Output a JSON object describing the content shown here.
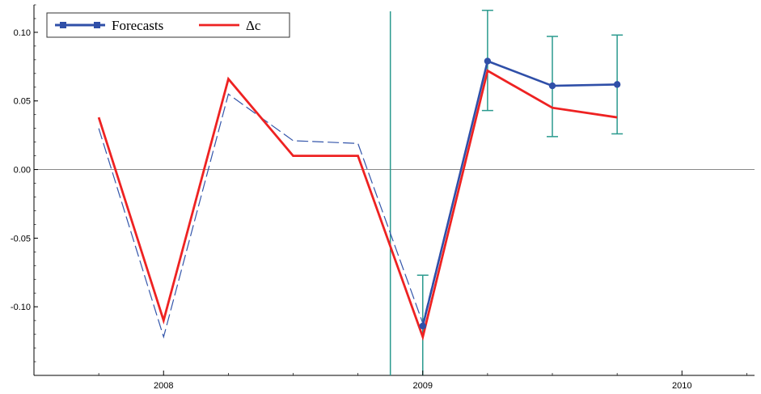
{
  "chart_data": {
    "type": "line",
    "xlim": [
      2007.5,
      2010.28
    ],
    "ylim": [
      -0.15,
      0.12
    ],
    "x_ticks": [
      {
        "value": 2008,
        "label": "2008"
      },
      {
        "value": 2009,
        "label": "2009"
      },
      {
        "value": 2010,
        "label": "2010"
      }
    ],
    "y_ticks": [
      {
        "value": 0.1,
        "label": "0.10"
      },
      {
        "value": 0.05,
        "label": "0.05"
      },
      {
        "value": 0.0,
        "label": "0.00"
      },
      {
        "value": -0.05,
        "label": "-0.05"
      },
      {
        "value": -0.1,
        "label": "-0.10"
      }
    ],
    "zero_line": true,
    "vertical_marker": {
      "x": 2008.875,
      "color": "#2a9a8e"
    },
    "legend": {
      "placement": "top-left",
      "entries": [
        {
          "label": "Forecasts",
          "series": "forecasts"
        },
        {
          "label": "Δc",
          "series": "delta_c"
        }
      ]
    },
    "series": [
      {
        "id": "fitted",
        "color": "#3355aa",
        "style": "dashed",
        "x": [
          2007.75,
          2008.0,
          2008.25,
          2008.5,
          2008.75,
          2009.0,
          2009.25
        ],
        "y": [
          0.03,
          -0.122,
          0.055,
          0.021,
          0.019,
          -0.112,
          0.079
        ]
      },
      {
        "id": "delta_c",
        "name": "Δc",
        "color": "#ee2222",
        "style": "solid",
        "x": [
          2007.75,
          2008.0,
          2008.25,
          2008.5,
          2008.75,
          2009.0,
          2009.25,
          2009.5,
          2009.75
        ],
        "y": [
          0.038,
          -0.11,
          0.066,
          0.01,
          0.01,
          -0.122,
          0.072,
          0.045,
          0.038
        ]
      },
      {
        "id": "forecasts",
        "name": "Forecasts",
        "color": "#2f4fa8",
        "style": "solid-markers",
        "x": [
          2009.0,
          2009.25,
          2009.5,
          2009.75
        ],
        "y": [
          -0.114,
          0.079,
          0.061,
          0.062
        ]
      }
    ],
    "error_bars": {
      "color": "#2a9a8e",
      "points": [
        {
          "x": 2009.0,
          "low": -0.155,
          "high": -0.077
        },
        {
          "x": 2009.25,
          "low": 0.043,
          "high": 0.116
        },
        {
          "x": 2009.5,
          "low": 0.024,
          "high": 0.097
        },
        {
          "x": 2009.75,
          "low": 0.026,
          "high": 0.098
        }
      ]
    }
  }
}
